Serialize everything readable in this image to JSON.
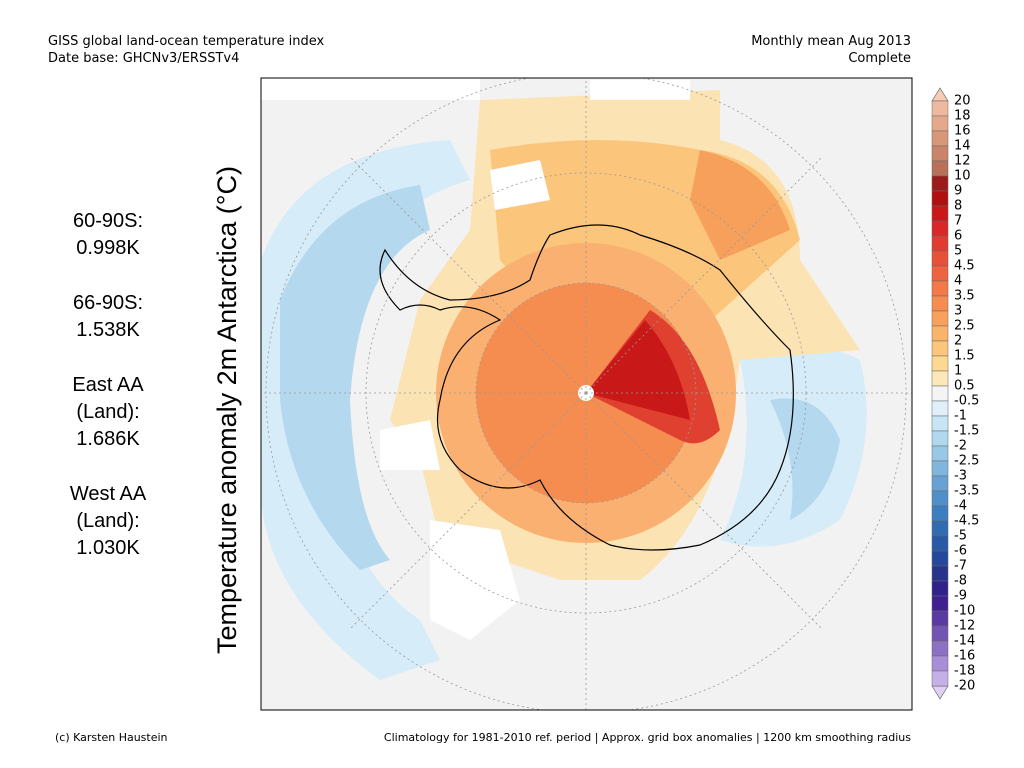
{
  "header": {
    "title": "GISS global land-ocean temperature index",
    "subtitle": "Date base: GHCNv3/ERSSTv4",
    "period": "Monthly mean Aug 2013",
    "status": "Complete"
  },
  "axis_title": "Temperature anomaly 2m Antarctica (°C)",
  "stats": [
    {
      "label": [
        "60-90S:"
      ],
      "value": "0.998K"
    },
    {
      "label": [
        "66-90S:"
      ],
      "value": "1.538K"
    },
    {
      "label": [
        "East AA",
        "(Land):"
      ],
      "value": "1.686K"
    },
    {
      "label": [
        "West AA",
        "(Land):"
      ],
      "value": "1.030K"
    }
  ],
  "colorbar": {
    "labels": [
      20,
      18,
      16,
      14,
      12,
      10,
      9,
      8,
      7,
      6,
      5,
      4.5,
      4,
      3.5,
      3,
      2.5,
      2,
      1.5,
      1,
      0.5,
      -0.5,
      -1,
      -1.5,
      -2,
      -2.5,
      -3,
      -3.5,
      -4,
      -4.5,
      -5,
      -6,
      -7,
      -8,
      -9,
      -10,
      -12,
      -14,
      -16,
      -18,
      -20
    ],
    "colors": [
      "#efb9a0",
      "#e6a88c",
      "#d9977a",
      "#c98469",
      "#b87058",
      "#9c1c1c",
      "#b01010",
      "#c81818",
      "#d82828",
      "#e03c30",
      "#e85038",
      "#ee6440",
      "#f47848",
      "#f78c50",
      "#f9a05c",
      "#fab46a",
      "#fbc67c",
      "#fcd890",
      "#fbe8b8",
      "#f4f4f4",
      "#dff0fa",
      "#c6e6f6",
      "#b0d8ee",
      "#98c8e6",
      "#80b6de",
      "#68a2d4",
      "#5090ca",
      "#3c7ebe",
      "#306cb2",
      "#285aa6",
      "#24489a",
      "#28348c",
      "#30228a",
      "#402090",
      "#5a3aa0",
      "#7454b2",
      "#8c70c4",
      "#a88ed6",
      "#c4b0e6"
    ],
    "top_color": "#f7cbb4",
    "bottom_color": "#ddd0f4"
  },
  "footer": {
    "credit": "(c) Karsten Haustein",
    "note": "Climatology for 1981-2010 ref. period | Approx. grid box anomalies | 1200 km smoothing radius"
  }
}
